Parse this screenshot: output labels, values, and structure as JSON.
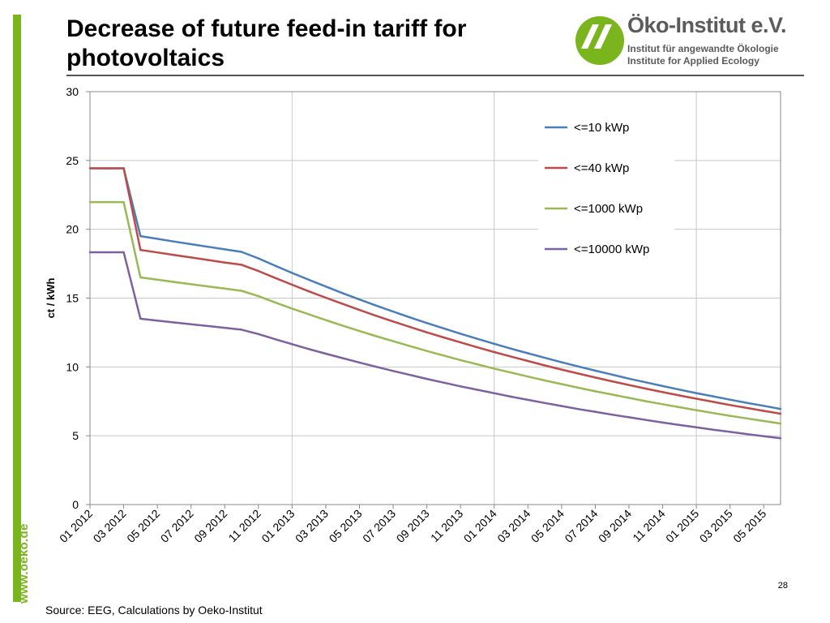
{
  "slide": {
    "title": "Decrease of future feed-in tariff for photovoltaics",
    "website": "www.oeko.de",
    "page_number": "28",
    "source": "Source: EEG, Calculations by Oeko-Institut"
  },
  "logo": {
    "name": "Öko-Institut e.V.",
    "subtitle_de": "Institut für angewandte Ökologie",
    "subtitle_en": "Institute for Applied Ecology",
    "color": "#7ab51d",
    "text_color": "#5b5b5b"
  },
  "chart_data": {
    "type": "line",
    "title": "",
    "xlabel": "",
    "ylabel": "ct / kWh",
    "ylim": [
      0,
      30
    ],
    "yticks": [
      0,
      5,
      10,
      15,
      20,
      25,
      30
    ],
    "xlim": [
      "2012-01",
      "2015-06"
    ],
    "xticks": [
      "01 2012",
      "03 2012",
      "05 2012",
      "07 2012",
      "09 2012",
      "11 2012",
      "01 2013",
      "03 2013",
      "05 2013",
      "07 2013",
      "09 2013",
      "11 2013",
      "01 2014",
      "03 2014",
      "05 2014",
      "07 2014",
      "09 2014",
      "11 2014",
      "01 2015",
      "03 2015",
      "05 2015"
    ],
    "vertical_gridlines_at": [
      "01 2012",
      "01 2013",
      "01 2014",
      "01 2015"
    ],
    "grid": true,
    "legend_position": "top-right",
    "x": [
      "2012-01",
      "2012-02",
      "2012-03",
      "2012-04",
      "2012-05",
      "2012-06",
      "2012-07",
      "2012-08",
      "2012-09",
      "2012-10",
      "2012-11",
      "2012-12",
      "2013-01",
      "2013-02",
      "2013-03",
      "2013-04",
      "2013-05",
      "2013-06",
      "2013-07",
      "2013-08",
      "2013-09",
      "2013-10",
      "2013-11",
      "2013-12",
      "2014-01",
      "2014-02",
      "2014-03",
      "2014-04",
      "2014-05",
      "2014-06",
      "2014-07",
      "2014-08",
      "2014-09",
      "2014-10",
      "2014-11",
      "2014-12",
      "2015-01",
      "2015-02",
      "2015-03",
      "2015-04",
      "2015-05",
      "2015-06"
    ],
    "series": [
      {
        "name": "<=10 kWp",
        "color": "#4a7ebb",
        "values": [
          24.43,
          24.43,
          24.43,
          19.5,
          19.31,
          19.11,
          18.92,
          18.73,
          18.54,
          18.36,
          17.89,
          17.35,
          16.83,
          16.33,
          15.84,
          15.36,
          14.9,
          14.45,
          14.02,
          13.6,
          13.19,
          12.8,
          12.41,
          12.04,
          11.68,
          11.33,
          10.99,
          10.66,
          10.34,
          10.03,
          9.73,
          9.44,
          9.15,
          8.88,
          8.61,
          8.35,
          8.1,
          7.86,
          7.62,
          7.39,
          7.17,
          6.95
        ]
      },
      {
        "name": "<=40 kWp",
        "color": "#be4b48",
        "values": [
          24.43,
          24.43,
          24.43,
          18.5,
          18.32,
          18.13,
          17.95,
          17.77,
          17.59,
          17.42,
          16.97,
          16.46,
          15.97,
          15.49,
          15.03,
          14.58,
          14.14,
          13.71,
          13.3,
          12.9,
          12.51,
          12.14,
          11.78,
          11.42,
          11.08,
          10.75,
          10.43,
          10.11,
          9.81,
          9.52,
          9.23,
          8.95,
          8.69,
          8.42,
          8.17,
          7.93,
          7.69,
          7.46,
          7.23,
          7.02,
          6.81,
          6.6
        ]
      },
      {
        "name": "<=1000 kWp",
        "color": "#98b954",
        "values": [
          21.98,
          21.98,
          21.98,
          16.5,
          16.34,
          16.17,
          16.01,
          15.85,
          15.69,
          15.53,
          15.14,
          14.68,
          14.24,
          13.82,
          13.4,
          13.0,
          12.61,
          12.23,
          11.87,
          11.51,
          11.16,
          10.83,
          10.5,
          10.19,
          9.88,
          9.59,
          9.3,
          9.02,
          8.75,
          8.49,
          8.23,
          7.99,
          7.75,
          7.51,
          7.29,
          7.07,
          6.86,
          6.65,
          6.45,
          6.26,
          6.07,
          5.89
        ]
      },
      {
        "name": "<=10000 kWp",
        "color": "#7d60a0",
        "values": [
          18.33,
          18.33,
          18.33,
          13.5,
          13.37,
          13.23,
          13.1,
          12.97,
          12.84,
          12.71,
          12.39,
          12.01,
          11.65,
          11.3,
          10.96,
          10.64,
          10.32,
          10.01,
          9.71,
          9.42,
          9.13,
          8.86,
          8.59,
          8.34,
          8.09,
          7.84,
          7.61,
          7.38,
          7.16,
          6.94,
          6.74,
          6.53,
          6.34,
          6.15,
          5.96,
          5.78,
          5.61,
          5.44,
          5.28,
          5.12,
          4.97,
          4.82
        ]
      }
    ]
  }
}
